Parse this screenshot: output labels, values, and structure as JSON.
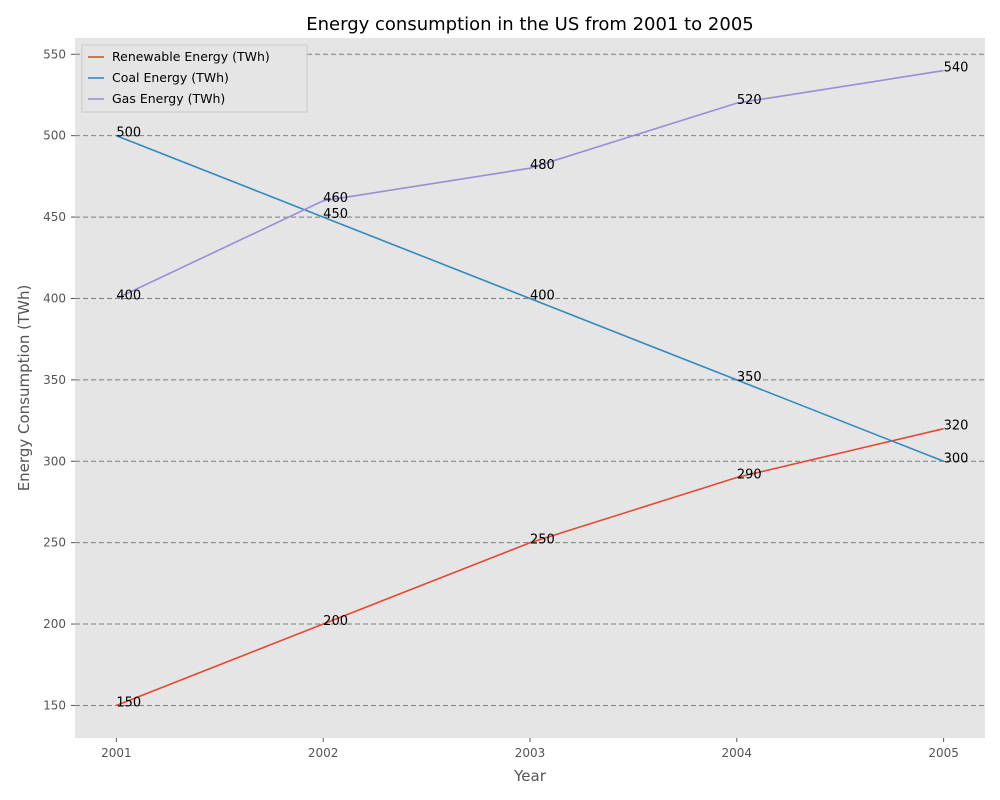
{
  "chart_data": {
    "type": "line",
    "title": "Energy consumption in the US from 2001 to 2005",
    "xlabel": "Year",
    "ylabel": "Energy Consumption (TWh)",
    "x": [
      2001,
      2002,
      2003,
      2004,
      2005
    ],
    "x_tick_labels": [
      "2001",
      "2002",
      "2003",
      "2004",
      "2005"
    ],
    "xlim": [
      2000.8,
      2005.2
    ],
    "ylim": [
      130,
      560
    ],
    "y_ticks": [
      150,
      200,
      250,
      300,
      350,
      400,
      450,
      500,
      550
    ],
    "y_tick_labels": [
      "150",
      "200",
      "250",
      "300",
      "350",
      "400",
      "450",
      "500",
      "550"
    ],
    "grid": "horizontal dashed",
    "legend_position": "top-left",
    "background": "#e5e5e5",
    "grid_color": "#7f7f7f",
    "series": [
      {
        "name": "Renewable Energy (TWh)",
        "color": "#e24a33",
        "values": [
          150,
          200,
          250,
          290,
          320
        ],
        "labels": [
          "150",
          "200",
          "250",
          "290",
          "320"
        ]
      },
      {
        "name": "Coal Energy (TWh)",
        "color": "#348abd",
        "values": [
          500,
          450,
          400,
          350,
          300
        ],
        "labels": [
          "500",
          "450",
          "400",
          "350",
          "300"
        ]
      },
      {
        "name": "Gas Energy (TWh)",
        "color": "#988ed5",
        "values": [
          400,
          460,
          480,
          520,
          540
        ],
        "labels": [
          "400",
          "460",
          "480",
          "520",
          "540"
        ]
      }
    ]
  }
}
